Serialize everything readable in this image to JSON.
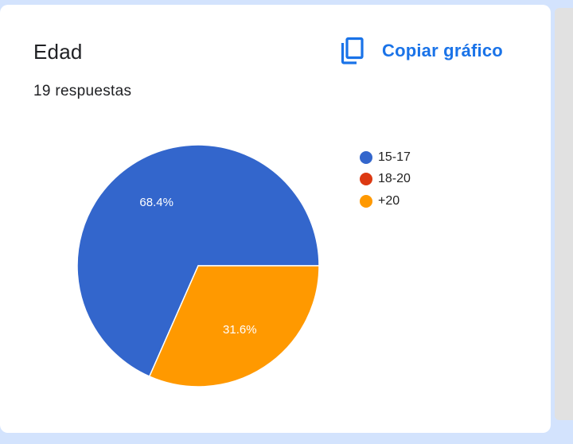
{
  "card": {
    "title": "Edad",
    "response_count": "19 respuestas",
    "copy_label": "Copiar gráfico",
    "copy_icon": "copy-icon"
  },
  "chart_data": {
    "type": "pie",
    "categories": [
      "15-17",
      "18-20",
      "+20"
    ],
    "values": [
      68.4,
      0,
      31.6
    ],
    "labels": [
      "68.4%",
      "",
      "31.6%"
    ],
    "colors": [
      "#3366cc",
      "#dc3912",
      "#ff9900"
    ],
    "legend": "right",
    "start_angle": "3 o'clock, counterclockwise"
  }
}
